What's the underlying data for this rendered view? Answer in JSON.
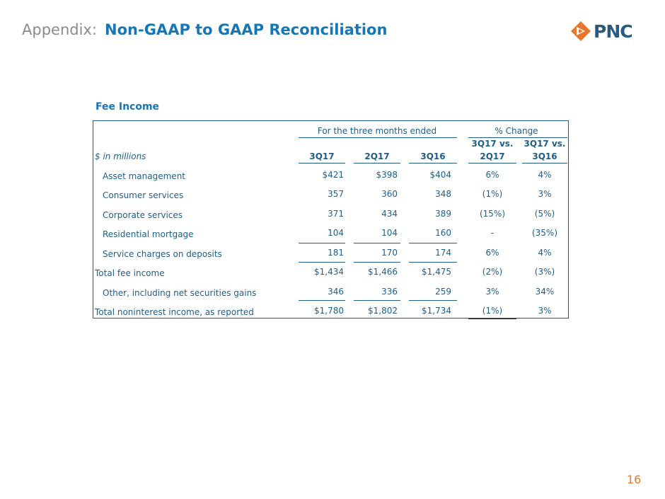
{
  "header": {
    "prefix": "Appendix:",
    "title": "Non-GAAP to GAAP Reconciliation"
  },
  "logo": {
    "text": "PNC",
    "icon": "pnc-logo-mark-icon",
    "colors": {
      "orange": "#e8762b",
      "navy": "#2a5a7d"
    }
  },
  "section": {
    "heading": "Fee Income"
  },
  "table": {
    "group_header_1": "For the three months ended",
    "group_header_2": "% Change",
    "units_label": "$ in millions",
    "columns": [
      "3Q17",
      "2Q17",
      "3Q16"
    ],
    "change_columns": [
      {
        "line1": "3Q17 vs.",
        "line2": "2Q17"
      },
      {
        "line1": "3Q17 vs.",
        "line2": "3Q16"
      }
    ],
    "rows": [
      {
        "label": "Asset management",
        "v1": "$421",
        "v2": "$398",
        "v3": "$404",
        "c1": "6%",
        "c2": "4%"
      },
      {
        "label": "Consumer services",
        "v1": "357",
        "v2": "360",
        "v3": "348",
        "c1": "(1%)",
        "c2": "3%"
      },
      {
        "label": "Corporate services",
        "v1": "371",
        "v2": "434",
        "v3": "389",
        "c1": "(15%)",
        "c2": "(5%)"
      },
      {
        "label": "Residential mortgage",
        "v1": "104",
        "v2": "104",
        "v3": "160",
        "c1": "-",
        "c2": "(35%)"
      },
      {
        "label": "Service charges on deposits",
        "v1": "181",
        "v2": "170",
        "v3": "174",
        "c1": "6%",
        "c2": "4%"
      },
      {
        "label": "Total fee income",
        "v1": "$1,434",
        "v2": "$1,466",
        "v3": "$1,475",
        "c1": "(2%)",
        "c2": "(3%)"
      },
      {
        "label": "Other, including net securities gains",
        "v1": "346",
        "v2": "336",
        "v3": "259",
        "c1": "3%",
        "c2": "34%"
      },
      {
        "label": "Total noninterest income, as reported",
        "v1": "$1,780",
        "v2": "$1,802",
        "v3": "$1,734",
        "c1": "(1%)",
        "c2": "3%"
      }
    ]
  },
  "footer": {
    "page_number": "16"
  }
}
